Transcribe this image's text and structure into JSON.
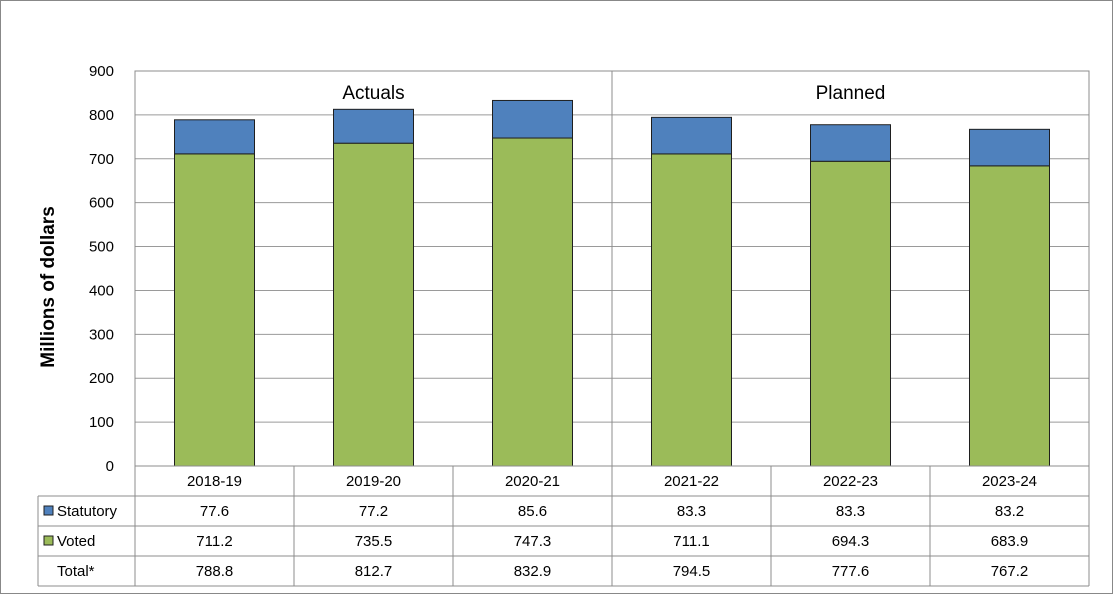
{
  "chart_data": {
    "type": "bar",
    "stacked": true,
    "categories": [
      "2018-19",
      "2019-20",
      "2020-21",
      "2021-22",
      "2022-23",
      "2023-24"
    ],
    "series": [
      {
        "name": "Voted",
        "color": "#9BBB59",
        "values": [
          711.2,
          735.5,
          747.3,
          711.1,
          694.3,
          683.9
        ]
      },
      {
        "name": "Statutory",
        "color": "#4F81BD",
        "values": [
          77.6,
          77.2,
          85.6,
          83.3,
          83.3,
          83.2
        ]
      }
    ],
    "ylabel": "Millions  of dollars",
    "ylim": [
      0,
      900
    ],
    "yticks": [
      "0",
      "100",
      "200",
      "300",
      "400",
      "500",
      "600",
      "700",
      "800",
      "900"
    ],
    "groups": [
      {
        "label": "Actuals",
        "categories": [
          "2018-19",
          "2019-20",
          "2020-21"
        ]
      },
      {
        "label": "Planned",
        "categories": [
          "2021-22",
          "2022-23",
          "2023-24"
        ]
      }
    ],
    "grid": true,
    "table": {
      "rows": [
        {
          "label": "Statutory",
          "legend_color": "#4F81BD",
          "values": [
            "77.6",
            "77.2",
            "85.6",
            "83.3",
            "83.3",
            "83.2"
          ]
        },
        {
          "label": "Voted",
          "legend_color": "#9BBB59",
          "values": [
            "711.2",
            "735.5",
            "747.3",
            "711.1",
            "694.3",
            "683.9"
          ]
        },
        {
          "label": "Total*",
          "values": [
            "788.8",
            "812.7",
            "832.9",
            "794.5",
            "777.6",
            "767.2"
          ]
        }
      ]
    }
  }
}
